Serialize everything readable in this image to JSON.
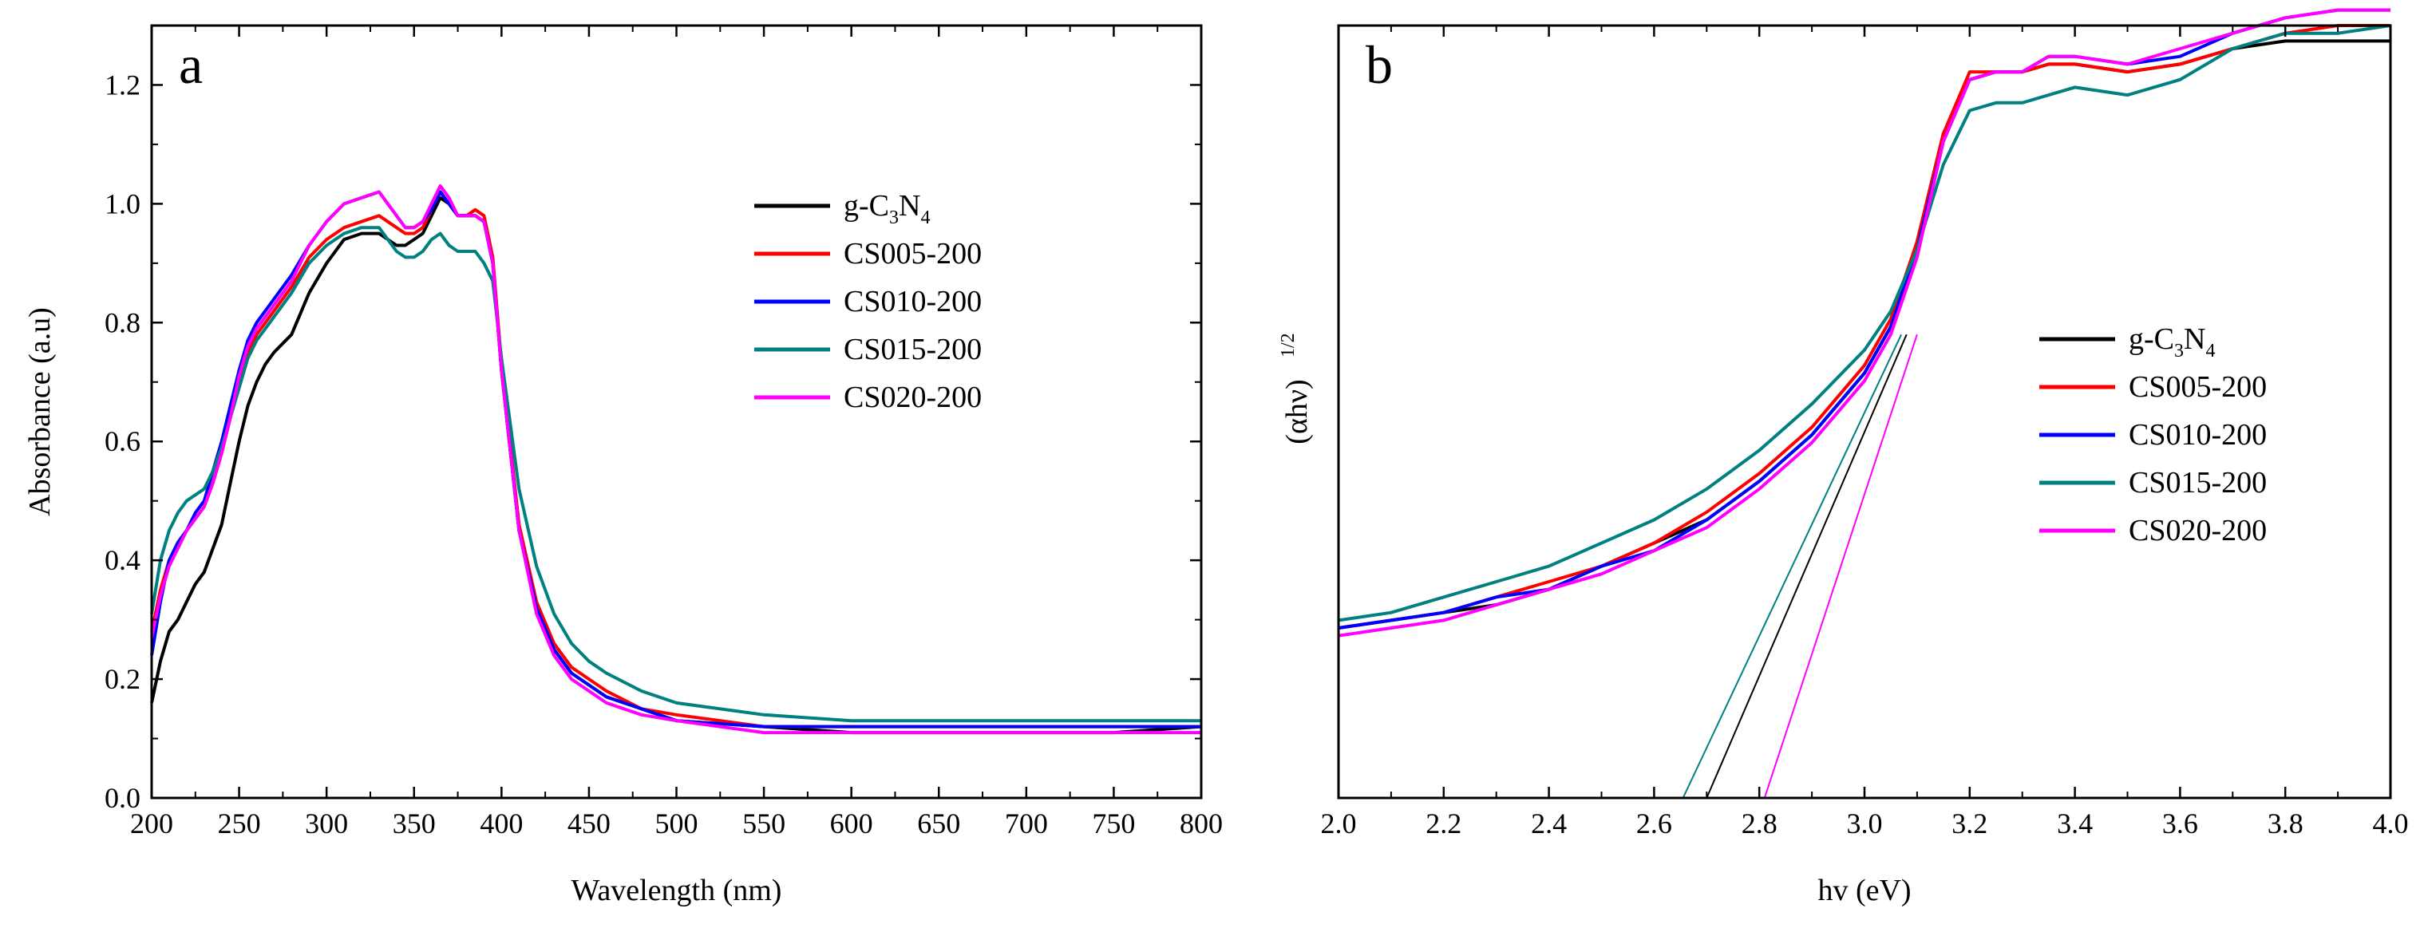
{
  "chart_data": [
    {
      "panel": "a",
      "type": "line",
      "xlabel": "Wavelength (nm)",
      "ylabel": "Absorbance (a.u)",
      "xlim": [
        200,
        800
      ],
      "ylim": [
        0,
        1.3
      ],
      "xticks": [
        200,
        250,
        300,
        350,
        400,
        450,
        500,
        550,
        600,
        650,
        700,
        750,
        800
      ],
      "yticks": [
        0.0,
        0.2,
        0.4,
        0.6,
        0.8,
        1.0,
        1.2
      ],
      "xtick_labels": [
        "200",
        "250",
        "300",
        "350",
        "400",
        "450",
        "500",
        "550",
        "600",
        "650",
        "700",
        "750",
        "800"
      ],
      "ytick_labels": [
        "0.0",
        "0.2",
        "0.4",
        "0.6",
        "0.8",
        "1.0",
        "1.2"
      ],
      "legend_position": "top-right",
      "series": [
        {
          "name": "g-C3N4",
          "label_main": "g-C",
          "label_sub1": "3",
          "label_mid": "N",
          "label_sub2": "4",
          "color": "#000000",
          "x": [
            200,
            205,
            210,
            215,
            220,
            225,
            230,
            235,
            240,
            245,
            250,
            255,
            260,
            265,
            270,
            280,
            290,
            300,
            310,
            320,
            330,
            340,
            345,
            350,
            355,
            360,
            365,
            370,
            375,
            380,
            385,
            390,
            395,
            400,
            410,
            420,
            430,
            440,
            450,
            460,
            480,
            500,
            550,
            600,
            650,
            700,
            750,
            800
          ],
          "y": [
            0.16,
            0.23,
            0.28,
            0.3,
            0.33,
            0.36,
            0.38,
            0.42,
            0.46,
            0.53,
            0.6,
            0.66,
            0.7,
            0.73,
            0.75,
            0.78,
            0.85,
            0.9,
            0.94,
            0.95,
            0.95,
            0.93,
            0.93,
            0.94,
            0.95,
            0.98,
            1.01,
            1.0,
            0.98,
            0.98,
            0.98,
            0.97,
            0.9,
            0.72,
            0.45,
            0.32,
            0.25,
            0.21,
            0.19,
            0.17,
            0.15,
            0.13,
            0.12,
            0.11,
            0.11,
            0.11,
            0.11,
            0.12
          ]
        },
        {
          "name": "CS005-200",
          "color": "#ff0000",
          "x": [
            200,
            205,
            210,
            215,
            220,
            225,
            230,
            235,
            240,
            245,
            250,
            255,
            260,
            265,
            270,
            280,
            290,
            300,
            310,
            320,
            330,
            340,
            345,
            350,
            355,
            360,
            365,
            370,
            375,
            380,
            385,
            390,
            395,
            400,
            410,
            420,
            430,
            440,
            450,
            460,
            480,
            500,
            550,
            600,
            650,
            700,
            750,
            800
          ],
          "y": [
            0.28,
            0.35,
            0.4,
            0.43,
            0.45,
            0.47,
            0.49,
            0.53,
            0.58,
            0.64,
            0.7,
            0.75,
            0.78,
            0.8,
            0.82,
            0.86,
            0.91,
            0.94,
            0.96,
            0.97,
            0.98,
            0.96,
            0.95,
            0.95,
            0.96,
            0.99,
            1.02,
            1.0,
            0.98,
            0.98,
            0.99,
            0.98,
            0.91,
            0.73,
            0.46,
            0.33,
            0.26,
            0.22,
            0.2,
            0.18,
            0.15,
            0.14,
            0.12,
            0.12,
            0.12,
            0.12,
            0.12,
            0.12
          ]
        },
        {
          "name": "CS010-200",
          "color": "#0000ff",
          "x": [
            200,
            205,
            210,
            215,
            220,
            225,
            230,
            235,
            240,
            245,
            250,
            255,
            260,
            265,
            270,
            280,
            290,
            300,
            310,
            320,
            330,
            340,
            345,
            350,
            355,
            360,
            365,
            370,
            375,
            380,
            385,
            390,
            395,
            400,
            410,
            420,
            430,
            440,
            450,
            460,
            480,
            500,
            550,
            600,
            650,
            700,
            750,
            800
          ],
          "y": [
            0.24,
            0.33,
            0.4,
            0.43,
            0.45,
            0.48,
            0.5,
            0.55,
            0.6,
            0.66,
            0.72,
            0.77,
            0.8,
            0.82,
            0.84,
            0.88,
            0.93,
            0.97,
            1.0,
            1.01,
            1.02,
            0.98,
            0.96,
            0.96,
            0.97,
            0.99,
            1.02,
            1.0,
            0.98,
            0.98,
            0.98,
            0.97,
            0.9,
            0.72,
            0.45,
            0.32,
            0.25,
            0.21,
            0.19,
            0.17,
            0.15,
            0.13,
            0.12,
            0.12,
            0.12,
            0.12,
            0.12,
            0.12
          ]
        },
        {
          "name": "CS015-200",
          "color": "#008080",
          "x": [
            200,
            205,
            210,
            215,
            220,
            225,
            230,
            235,
            240,
            245,
            250,
            255,
            260,
            265,
            270,
            280,
            290,
            300,
            310,
            320,
            330,
            340,
            345,
            350,
            355,
            360,
            365,
            370,
            375,
            380,
            385,
            390,
            395,
            400,
            410,
            420,
            430,
            440,
            450,
            460,
            480,
            500,
            550,
            600,
            650,
            700,
            750,
            800
          ],
          "y": [
            0.31,
            0.4,
            0.45,
            0.48,
            0.5,
            0.51,
            0.52,
            0.55,
            0.59,
            0.64,
            0.69,
            0.74,
            0.77,
            0.79,
            0.81,
            0.85,
            0.9,
            0.93,
            0.95,
            0.96,
            0.96,
            0.92,
            0.91,
            0.91,
            0.92,
            0.94,
            0.95,
            0.93,
            0.92,
            0.92,
            0.92,
            0.9,
            0.87,
            0.74,
            0.52,
            0.39,
            0.31,
            0.26,
            0.23,
            0.21,
            0.18,
            0.16,
            0.14,
            0.13,
            0.13,
            0.13,
            0.13,
            0.13
          ]
        },
        {
          "name": "CS020-200",
          "color": "#ff00ff",
          "x": [
            200,
            205,
            210,
            215,
            220,
            225,
            230,
            235,
            240,
            245,
            250,
            255,
            260,
            265,
            270,
            280,
            290,
            300,
            310,
            320,
            330,
            340,
            345,
            350,
            355,
            360,
            365,
            370,
            375,
            380,
            385,
            390,
            395,
            400,
            410,
            420,
            430,
            440,
            450,
            460,
            480,
            500,
            550,
            600,
            650,
            700,
            750,
            800
          ],
          "y": [
            0.27,
            0.34,
            0.39,
            0.42,
            0.45,
            0.47,
            0.49,
            0.53,
            0.58,
            0.64,
            0.71,
            0.76,
            0.79,
            0.81,
            0.83,
            0.87,
            0.93,
            0.97,
            1.0,
            1.01,
            1.02,
            0.98,
            0.96,
            0.96,
            0.97,
            1.0,
            1.03,
            1.01,
            0.98,
            0.98,
            0.98,
            0.97,
            0.9,
            0.72,
            0.45,
            0.31,
            0.24,
            0.2,
            0.18,
            0.16,
            0.14,
            0.13,
            0.11,
            0.11,
            0.11,
            0.11,
            0.11,
            0.11
          ]
        }
      ]
    },
    {
      "panel": "b",
      "type": "line",
      "xlabel": "hv (eV)",
      "ylabel_main": "(αhν)",
      "ylabel_sup": "1/2",
      "xlim": [
        2.0,
        4.0
      ],
      "ylim": [
        0,
        1.0
      ],
      "xticks": [
        2.0,
        2.2,
        2.4,
        2.6,
        2.8,
        3.0,
        3.2,
        3.4,
        3.6,
        3.8,
        4.0
      ],
      "xtick_labels": [
        "2.0",
        "2.2",
        "2.4",
        "2.6",
        "2.8",
        "3.0",
        "3.2",
        "3.4",
        "3.6",
        "3.8",
        "4.0"
      ],
      "ytick_labels": [],
      "legend_position": "middle-right",
      "tangent_lines": [
        {
          "name": "tangent-cs015",
          "color": "#008080",
          "x": [
            2.655,
            3.07
          ],
          "y": [
            0.0,
            0.6
          ]
        },
        {
          "name": "tangent-gc3n4",
          "color": "#000000",
          "x": [
            2.7,
            3.08
          ],
          "y": [
            0.0,
            0.6
          ]
        },
        {
          "name": "tangent-cs020",
          "color": "#ff00ff",
          "x": [
            2.81,
            3.1
          ],
          "y": [
            0.0,
            0.6
          ]
        }
      ],
      "series": [
        {
          "name": "g-C3N4",
          "label_main": "g-C",
          "label_sub1": "3",
          "label_mid": "N",
          "label_sub2": "4",
          "color": "#000000",
          "x": [
            2.0,
            2.1,
            2.2,
            2.3,
            2.4,
            2.5,
            2.6,
            2.7,
            2.8,
            2.9,
            3.0,
            3.05,
            3.1,
            3.15,
            3.2,
            3.25,
            3.3,
            3.35,
            3.4,
            3.5,
            3.6,
            3.7,
            3.8,
            3.9,
            4.0
          ],
          "y": [
            0.22,
            0.23,
            0.24,
            0.25,
            0.27,
            0.3,
            0.33,
            0.36,
            0.41,
            0.47,
            0.55,
            0.61,
            0.72,
            0.86,
            0.93,
            0.94,
            0.94,
            0.95,
            0.95,
            0.94,
            0.95,
            0.97,
            0.98,
            0.98,
            0.98
          ]
        },
        {
          "name": "CS005-200",
          "color": "#ff0000",
          "x": [
            2.0,
            2.1,
            2.2,
            2.3,
            2.4,
            2.5,
            2.6,
            2.7,
            2.8,
            2.9,
            3.0,
            3.05,
            3.1,
            3.15,
            3.2,
            3.25,
            3.3,
            3.35,
            3.4,
            3.5,
            3.6,
            3.7,
            3.8,
            3.9,
            4.0
          ],
          "y": [
            0.22,
            0.23,
            0.24,
            0.26,
            0.28,
            0.3,
            0.33,
            0.37,
            0.42,
            0.48,
            0.56,
            0.62,
            0.72,
            0.86,
            0.94,
            0.94,
            0.94,
            0.95,
            0.95,
            0.94,
            0.95,
            0.97,
            0.99,
            1.0,
            1.0
          ]
        },
        {
          "name": "CS010-200",
          "color": "#0000ff",
          "x": [
            2.0,
            2.1,
            2.2,
            2.3,
            2.4,
            2.5,
            2.6,
            2.7,
            2.8,
            2.9,
            3.0,
            3.05,
            3.1,
            3.15,
            3.2,
            3.25,
            3.3,
            3.35,
            3.4,
            3.5,
            3.6,
            3.7,
            3.8,
            3.9,
            4.0
          ],
          "y": [
            0.22,
            0.23,
            0.24,
            0.26,
            0.27,
            0.3,
            0.32,
            0.36,
            0.41,
            0.47,
            0.55,
            0.61,
            0.71,
            0.85,
            0.93,
            0.94,
            0.94,
            0.96,
            0.96,
            0.95,
            0.96,
            0.99,
            1.01,
            1.02,
            1.02
          ]
        },
        {
          "name": "CS015-200",
          "color": "#008080",
          "x": [
            2.0,
            2.1,
            2.2,
            2.3,
            2.4,
            2.5,
            2.6,
            2.7,
            2.8,
            2.9,
            3.0,
            3.05,
            3.1,
            3.15,
            3.2,
            3.25,
            3.3,
            3.35,
            3.4,
            3.5,
            3.6,
            3.7,
            3.8,
            3.9,
            4.0
          ],
          "y": [
            0.23,
            0.24,
            0.26,
            0.28,
            0.3,
            0.33,
            0.36,
            0.4,
            0.45,
            0.51,
            0.58,
            0.63,
            0.71,
            0.82,
            0.89,
            0.9,
            0.9,
            0.91,
            0.92,
            0.91,
            0.93,
            0.97,
            0.99,
            0.99,
            1.0
          ]
        },
        {
          "name": "CS020-200",
          "color": "#ff00ff",
          "x": [
            2.0,
            2.1,
            2.2,
            2.3,
            2.4,
            2.5,
            2.6,
            2.7,
            2.8,
            2.9,
            3.0,
            3.05,
            3.1,
            3.15,
            3.2,
            3.25,
            3.3,
            3.35,
            3.4,
            3.5,
            3.6,
            3.7,
            3.8,
            3.9,
            4.0
          ],
          "y": [
            0.21,
            0.22,
            0.23,
            0.25,
            0.27,
            0.29,
            0.32,
            0.35,
            0.4,
            0.46,
            0.54,
            0.6,
            0.7,
            0.85,
            0.93,
            0.94,
            0.94,
            0.96,
            0.96,
            0.95,
            0.97,
            0.99,
            1.01,
            1.02,
            1.02
          ]
        }
      ]
    }
  ],
  "panel_labels": {
    "a": "a",
    "b": "b"
  }
}
